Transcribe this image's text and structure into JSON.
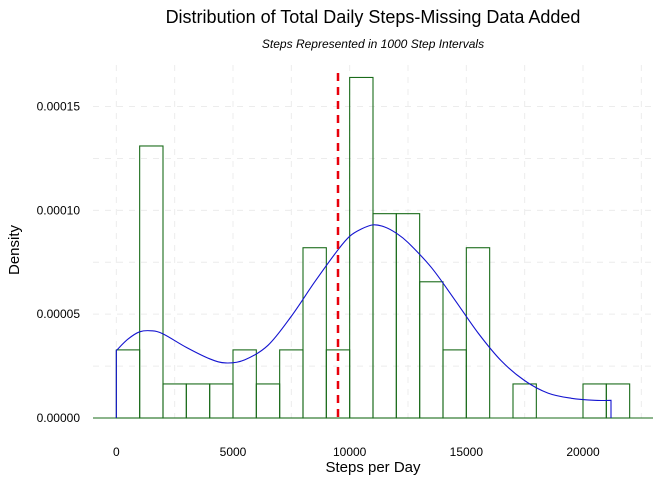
{
  "chart_data": {
    "type": "bar",
    "title": "Distribution of Total Daily Steps-Missing Data Added",
    "subtitle": "Steps Represented in 1000 Step Intervals",
    "xlabel": "Steps per Day",
    "ylabel": "Density",
    "xlim": [
      -1000,
      23000
    ],
    "ylim": [
      0,
      0.00017
    ],
    "x_ticks": [
      0,
      5000,
      10000,
      15000,
      20000
    ],
    "x_tick_labels": [
      "0",
      "5000",
      "10000",
      "15000",
      "20000"
    ],
    "y_ticks": [
      0,
      5e-05,
      0.0001,
      0.00015
    ],
    "y_tick_labels": [
      "0.00000",
      "0.00005",
      "0.00010",
      "0.00015"
    ],
    "grid": true,
    "bin_width": 1000,
    "histogram": [
      {
        "start": 0,
        "end": 1000,
        "density": 3.28e-05
      },
      {
        "start": 1000,
        "end": 2000,
        "density": 0.000131
      },
      {
        "start": 2000,
        "end": 3000,
        "density": 1.64e-05
      },
      {
        "start": 3000,
        "end": 4000,
        "density": 1.64e-05
      },
      {
        "start": 4000,
        "end": 5000,
        "density": 1.64e-05
      },
      {
        "start": 5000,
        "end": 6000,
        "density": 3.28e-05
      },
      {
        "start": 6000,
        "end": 7000,
        "density": 1.64e-05
      },
      {
        "start": 7000,
        "end": 8000,
        "density": 3.28e-05
      },
      {
        "start": 8000,
        "end": 9000,
        "density": 8.2e-05
      },
      {
        "start": 9000,
        "end": 10000,
        "density": 3.28e-05
      },
      {
        "start": 10000,
        "end": 11000,
        "density": 0.000164
      },
      {
        "start": 11000,
        "end": 12000,
        "density": 9.84e-05
      },
      {
        "start": 12000,
        "end": 13000,
        "density": 9.84e-05
      },
      {
        "start": 13000,
        "end": 14000,
        "density": 6.56e-05
      },
      {
        "start": 14000,
        "end": 15000,
        "density": 3.28e-05
      },
      {
        "start": 15000,
        "end": 16000,
        "density": 8.2e-05
      },
      {
        "start": 16000,
        "end": 17000,
        "density": 0
      },
      {
        "start": 17000,
        "end": 18000,
        "density": 1.64e-05
      },
      {
        "start": 18000,
        "end": 19000,
        "density": 0
      },
      {
        "start": 19000,
        "end": 20000,
        "density": 0
      },
      {
        "start": 20000,
        "end": 21000,
        "density": 1.64e-05
      },
      {
        "start": 21000,
        "end": 22000,
        "density": 1.64e-05
      }
    ],
    "density_curve": {
      "x": [
        0,
        500,
        1000,
        1500,
        2000,
        3000,
        4000,
        4700,
        5500,
        6500,
        7500,
        8500,
        9500,
        10000,
        10500,
        11000,
        11500,
        12000,
        12500,
        13500,
        14500,
        15500,
        16500,
        17500,
        18500,
        19500,
        20500,
        21200
      ],
      "y": [
        3.25e-05,
        3.8e-05,
        4.15e-05,
        4.2e-05,
        4.05e-05,
        3.4e-05,
        2.85e-05,
        2.65e-05,
        2.8e-05,
        3.5e-05,
        4.9e-05,
        6.55e-05,
        8.1e-05,
        8.75e-05,
        9.1e-05,
        9.3e-05,
        9.2e-05,
        8.9e-05,
        8.45e-05,
        7.25e-05,
        5.7e-05,
        4.1e-05,
        2.75e-05,
        1.8e-05,
        1.2e-05,
        9.5e-06,
        8.5e-06,
        8.5e-06
      ]
    },
    "mean_line_x": 9500,
    "colors": {
      "bar_outline": "#1a6b1a",
      "density": "#1414d0",
      "mean_line": "#e8000b",
      "grid": "#ececec"
    }
  }
}
